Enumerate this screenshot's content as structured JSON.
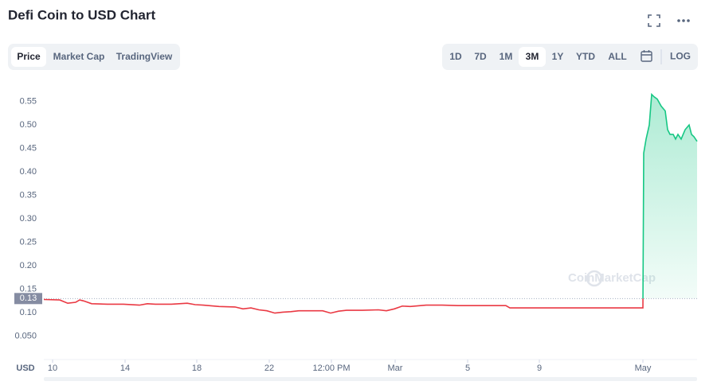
{
  "header": {
    "title": "Defi Coin to USD Chart"
  },
  "tabs": [
    "Price",
    "Market Cap",
    "TradingView"
  ],
  "selected_tab": 0,
  "ranges": [
    "1D",
    "7D",
    "1M",
    "3M",
    "1Y",
    "YTD",
    "ALL"
  ],
  "selected_range": 3,
  "log_button": "LOG",
  "chart_data": {
    "type": "line",
    "x": [
      0,
      2,
      3,
      4,
      4.5,
      5,
      6,
      8,
      10,
      12,
      13,
      14,
      16,
      18,
      19,
      20,
      22,
      24,
      25,
      26,
      27,
      28,
      29,
      30,
      31,
      32,
      34,
      35,
      36,
      37,
      38,
      40,
      42,
      43,
      44,
      45,
      46,
      48,
      50,
      52,
      54,
      56,
      58,
      58.5,
      60,
      62,
      64,
      66,
      68,
      70,
      72,
      74,
      75.2,
      75.3,
      75.6,
      76,
      76.3,
      76.6,
      77,
      77.5,
      78,
      78.3,
      78.6,
      79,
      79.3,
      79.6,
      80,
      80.5,
      81,
      81.3,
      81.6,
      82
    ],
    "values": [
      0.128,
      0.127,
      0.12,
      0.122,
      0.127,
      0.125,
      0.119,
      0.118,
      0.118,
      0.116,
      0.119,
      0.118,
      0.118,
      0.12,
      0.117,
      0.116,
      0.113,
      0.112,
      0.108,
      0.11,
      0.106,
      0.104,
      0.099,
      0.101,
      0.102,
      0.104,
      0.104,
      0.104,
      0.099,
      0.103,
      0.105,
      0.105,
      0.106,
      0.104,
      0.108,
      0.114,
      0.113,
      0.116,
      0.116,
      0.115,
      0.115,
      0.115,
      0.115,
      0.11,
      0.11,
      0.11,
      0.11,
      0.11,
      0.11,
      0.11,
      0.11,
      0.11,
      0.11,
      0.44,
      0.47,
      0.5,
      0.565,
      0.56,
      0.555,
      0.54,
      0.53,
      0.49,
      0.48,
      0.48,
      0.47,
      0.48,
      0.47,
      0.49,
      0.5,
      0.48,
      0.475,
      0.465
    ],
    "color_up": "#16c784",
    "color_down": "#ea3943",
    "baseline": 0.13,
    "currency": "USD",
    "watermark": "CoinMarketCap",
    "xlim": [
      0,
      82
    ],
    "xticks": [
      {
        "value": 1.1,
        "label": "10"
      },
      {
        "value": 10.2,
        "label": "14"
      },
      {
        "value": 19.2,
        "label": "18"
      },
      {
        "value": 28.3,
        "label": "22"
      },
      {
        "value": 36.1,
        "label": "12:00 PM"
      },
      {
        "value": 44.1,
        "label": "Mar"
      },
      {
        "value": 53.2,
        "label": "5"
      },
      {
        "value": 62.2,
        "label": "9"
      },
      {
        "value": 75.2,
        "label": "May"
      }
    ],
    "ylim": [
      0,
      0.59
    ],
    "yticks": [
      {
        "value": 0.05,
        "label": "0.050"
      },
      {
        "value": 0.1,
        "label": "0.10"
      },
      0.15,
      {
        "value": 0.2,
        "label": "0.20"
      },
      0.25,
      {
        "value": 0.3,
        "label": "0.30"
      },
      0.35,
      {
        "value": 0.4,
        "label": "0.40"
      },
      0.45,
      {
        "value": 0.5,
        "label": "0.50"
      },
      0.55
    ]
  }
}
